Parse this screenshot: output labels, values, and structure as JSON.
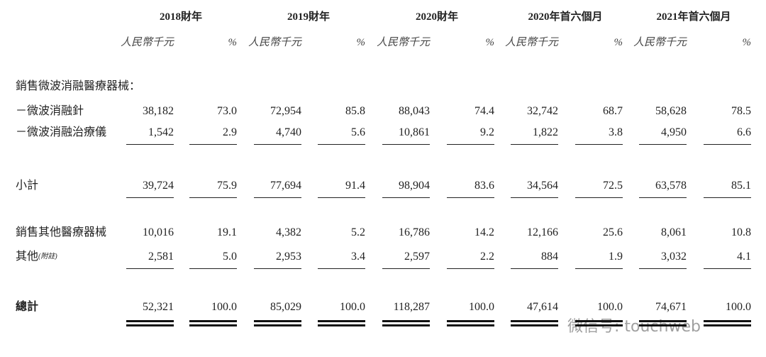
{
  "header": {
    "periods": [
      "2018財年",
      "2019財年",
      "2020財年",
      "2020年首六個月",
      "2021年首六個月"
    ],
    "units": [
      "人民幣千元",
      "%"
    ]
  },
  "rows": [
    {
      "label": "銷售微波消融醫療器械："
    },
    {
      "label": "－微波消融針",
      "values": [
        "38,182",
        "73.0",
        "72,954",
        "85.8",
        "88,043",
        "74.4",
        "32,742",
        "68.7",
        "58,628",
        "78.5"
      ]
    },
    {
      "label": "－微波消融治療儀",
      "values": [
        "1,542",
        "2.9",
        "4,740",
        "5.6",
        "10,861",
        "9.2",
        "1,822",
        "3.8",
        "4,950",
        "6.6"
      ]
    },
    {
      "label": "小計",
      "values": [
        "39,724",
        "75.9",
        "77,694",
        "91.4",
        "98,904",
        "83.6",
        "34,564",
        "72.5",
        "63,578",
        "85.1"
      ]
    },
    {
      "label": "銷售其他醫療器械",
      "values": [
        "10,016",
        "19.1",
        "4,382",
        "5.2",
        "16,786",
        "14.2",
        "12,166",
        "25.6",
        "8,061",
        "10.8"
      ]
    },
    {
      "label": "其他",
      "note": "(附註)",
      "values": [
        "2,581",
        "5.0",
        "2,953",
        "3.4",
        "2,597",
        "2.2",
        "884",
        "1.9",
        "3,032",
        "4.1"
      ]
    },
    {
      "label": "總計",
      "values": [
        "52,321",
        "100.0",
        "85,029",
        "100.0",
        "118,287",
        "100.0",
        "47,614",
        "100.0",
        "74,671",
        "100.0"
      ]
    }
  ],
  "watermark": "微信号: touchweb"
}
